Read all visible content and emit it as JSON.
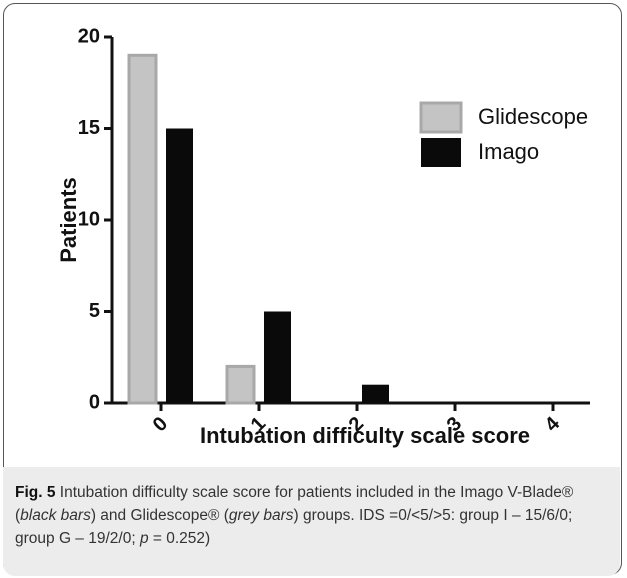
{
  "chart_data": {
    "type": "bar",
    "categories": [
      "0",
      "1",
      "2",
      "3",
      "4"
    ],
    "series": [
      {
        "name": "Glidescope",
        "color": "#c4c4c4",
        "values": [
          19,
          2,
          0,
          0,
          0
        ]
      },
      {
        "name": "Imago",
        "color": "#0a0a0a",
        "values": [
          15,
          5,
          1,
          0,
          0
        ]
      }
    ],
    "xlabel": "Intubation difficulty scale score",
    "ylabel": "Patients",
    "ylim": [
      0,
      20
    ],
    "yticks": [
      0,
      5,
      10,
      15,
      20
    ],
    "grid": false,
    "legend": "upper right"
  },
  "caption": {
    "label": "Fig. 5",
    "parts": [
      {
        "text": " Intubation difficulty scale score for patients included in the Imago V-Blade® (",
        "italic": false
      },
      {
        "text": "black bars",
        "italic": true
      },
      {
        "text": ") and Glidescope® (",
        "italic": false
      },
      {
        "text": "grey bars",
        "italic": true
      },
      {
        "text": ") groups. IDS =0/<5/>5: group I – 15/6/0; group G – 19/2/0; ",
        "italic": false
      },
      {
        "text": "p",
        "italic": true
      },
      {
        "text": " = 0.252)",
        "italic": false
      }
    ]
  }
}
